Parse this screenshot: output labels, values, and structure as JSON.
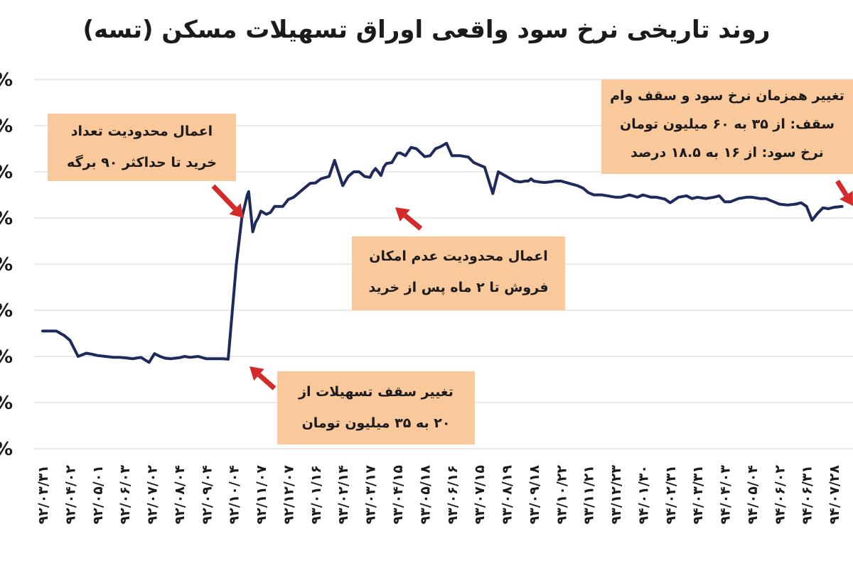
{
  "chart_data": {
    "type": "line",
    "title": "روند تاریخی نرخ سود واقعی اوراق تسهیلات مسکن (تسه)",
    "xlabel": "",
    "ylabel": "",
    "grid": true,
    "y_tick_suffix": "%",
    "ylim": [
      0,
      8
    ],
    "x_tick_labels": [
      "۹۲/۰۳/۳۱",
      "۹۲/۰۴/۰۲",
      "۹۲/۰۵/۰۱",
      "۹۲/۰۶/۰۳",
      "۹۲/۰۷/۰۲",
      "۹۲/۰۸/۰۴",
      "۹۲/۰۹/۰۴",
      "۹۲/۱۰/۰۴",
      "۹۲/۱۱/۰۷",
      "۹۲/۱۲/۰۷",
      "۹۳/۰۱/۱۶",
      "۹۳/۰۲/۱۴",
      "۹۳/۰۳/۱۷",
      "۹۳/۰۴/۱۵",
      "۹۳/۰۵/۱۸",
      "۹۳/۰۶/۱۶",
      "۹۳/۰۷/۱۵",
      "۹۳/۰۸/۱۹",
      "۹۳/۰۹/۱۸",
      "۹۳/۱۰/۲۲",
      "۹۳/۱۱/۲۱",
      "۹۳/۱۲/۲۳",
      "۹۴/۰۱/۳۰",
      "۹۴/۰۲/۳۱",
      "۹۴/۰۳/۳۱",
      "۹۴/۰۴/۰۳",
      "۹۴/۰۵/۰۴",
      "۹۴/۰۶/۰۲",
      "۹۴/۰۶/۳۱",
      "۹۴/۰۷/۲۸"
    ],
    "series": [
      {
        "color": "#1f2a5c",
        "x": [
          0.0,
          0.2,
          0.5,
          0.8,
          1.0,
          1.3,
          1.6,
          1.8,
          2.0,
          2.3,
          2.6,
          2.8,
          3.0,
          3.3,
          3.6,
          3.9,
          4.1,
          4.3,
          4.5,
          4.7,
          5.0,
          5.2,
          5.4,
          5.7,
          6.0,
          6.3,
          6.6,
          6.8,
          7.1,
          7.3,
          7.5,
          7.55,
          7.7,
          7.8,
          7.9,
          8.0,
          8.2,
          8.35,
          8.5,
          8.8,
          9.0,
          9.2,
          9.5,
          9.8,
          10.0,
          10.2,
          10.5,
          10.7,
          11.0,
          11.2,
          11.4,
          11.6,
          11.8,
          12.0,
          12.1,
          12.2,
          12.3,
          12.4,
          12.5,
          12.6,
          12.8,
          13.0,
          13.1,
          13.3,
          13.5,
          13.7,
          14.0,
          14.2,
          14.4,
          14.6,
          14.8,
          15.0,
          15.3,
          15.6,
          15.8,
          16.0,
          16.2,
          16.5,
          16.7,
          17.0,
          17.3,
          17.5,
          17.7,
          17.8,
          17.9,
          18.0,
          18.2,
          18.4,
          18.6,
          18.8,
          19.0,
          19.3,
          19.6,
          19.8,
          20.0,
          20.2,
          20.5,
          20.7,
          21.0,
          21.2,
          21.5,
          21.8,
          22.0,
          22.3,
          22.5,
          22.8,
          23.0,
          23.3,
          23.6,
          23.8,
          24.0,
          24.3,
          24.6,
          24.8,
          25.0,
          25.2,
          25.5,
          25.8,
          26.0,
          26.3,
          26.5,
          26.8,
          27.0,
          27.3,
          27.6,
          27.8,
          28.0,
          28.2,
          28.4,
          28.6,
          28.8,
          29.0,
          29.3
        ],
        "y": [
          2.55,
          2.55,
          2.55,
          2.45,
          2.35,
          2.0,
          2.07,
          2.05,
          2.02,
          2.0,
          1.98,
          1.98,
          1.97,
          1.95,
          1.98,
          1.87,
          2.06,
          2.0,
          1.96,
          1.95,
          1.97,
          2.0,
          1.98,
          2.0,
          1.95,
          1.95,
          1.95,
          1.94,
          4.0,
          5.0,
          5.5,
          5.57,
          4.7,
          4.9,
          5.0,
          5.15,
          5.08,
          5.12,
          5.25,
          5.25,
          5.4,
          5.45,
          5.6,
          5.75,
          5.76,
          5.85,
          5.9,
          6.25,
          5.7,
          5.9,
          6.0,
          6.0,
          5.9,
          5.88,
          6.0,
          6.07,
          6.0,
          5.92,
          6.1,
          6.18,
          6.2,
          6.4,
          6.41,
          6.35,
          6.53,
          6.5,
          6.33,
          6.35,
          6.5,
          6.55,
          6.62,
          6.35,
          6.35,
          6.32,
          6.2,
          6.15,
          6.1,
          5.53,
          6.0,
          5.9,
          5.8,
          5.78,
          5.8,
          5.8,
          5.85,
          5.8,
          5.78,
          5.77,
          5.78,
          5.8,
          5.8,
          5.75,
          5.7,
          5.65,
          5.55,
          5.5,
          5.5,
          5.48,
          5.45,
          5.45,
          5.5,
          5.45,
          5.5,
          5.45,
          5.45,
          5.41,
          5.33,
          5.45,
          5.48,
          5.42,
          5.45,
          5.42,
          5.45,
          5.48,
          5.35,
          5.35,
          5.42,
          5.45,
          5.45,
          5.42,
          5.42,
          5.35,
          5.3,
          5.28,
          5.3,
          5.33,
          5.25,
          4.95,
          5.1,
          5.22,
          5.2,
          5.23,
          5.25
        ]
      }
    ],
    "annotations": [
      {
        "lines": [
          "اعمال محدودیت تعداد",
          "خرید تا حداکثر ۹۰ برگه"
        ]
      },
      {
        "lines": [
          "اعمال محدودیت عدم امکان",
          "فروش تا ۲ ماه پس از خرید"
        ]
      },
      {
        "lines": [
          "تغییر سقف تسهیلات از",
          "۲۰ به ۳۵ میلیون تومان"
        ]
      },
      {
        "lines": [
          "تغییر همزمان نرخ سود و سقف وام",
          "سقف: از ۳۵ به ۶۰ میلیون تومان",
          "نرخ سود: از ۱۶ به ۱۸.۵ درصد"
        ]
      }
    ],
    "colors": {
      "callout_fill": "#f9c89b",
      "arrow": "#d42a2a",
      "grid": "#d4d4d4"
    }
  }
}
